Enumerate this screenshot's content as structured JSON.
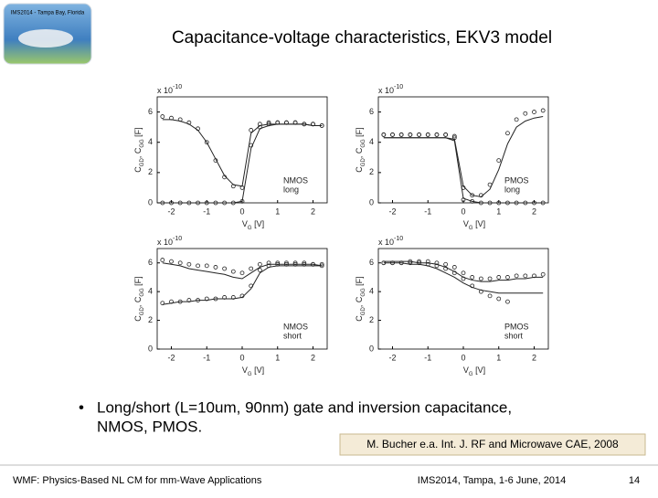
{
  "header": {
    "title": "Capacitance-voltage characteristics, EKV3 model",
    "logo_text": "IMS2014 - Tampa Bay, Florida"
  },
  "chart_data": [
    {
      "type": "line",
      "x": [
        -2.25,
        -2,
        -1.75,
        -1.5,
        -1.25,
        -1,
        -0.75,
        -0.5,
        -0.25,
        0,
        0.25,
        0.5,
        0.75,
        1,
        1.25,
        1.5,
        1.75,
        2,
        2.25
      ],
      "xlim": [
        -2.4,
        2.4
      ],
      "xticks": [
        -2,
        -1,
        0,
        1,
        2
      ],
      "ylim": [
        0,
        7
      ],
      "yticks": [
        0,
        2,
        4,
        6
      ],
      "scale_label": "x 10",
      "scale_exponent": "-10",
      "xlabel": [
        "V",
        "G",
        " [V]"
      ],
      "ylabel": [
        "C",
        "GD",
        ", C",
        "GG",
        " [F]"
      ],
      "annotations": [
        "NMOS",
        "long"
      ],
      "series": [
        {
          "color": "#222",
          "marker": "circle",
          "values": [
            5.7,
            5.6,
            5.5,
            5.3,
            4.9,
            4.0,
            2.8,
            1.7,
            1.1,
            1.0,
            4.8,
            5.2,
            5.3,
            5.3,
            5.3,
            5.3,
            5.2,
            5.2,
            5.1
          ]
        },
        {
          "color": "#222",
          "marker": "circle",
          "values": [
            0,
            0,
            0,
            0,
            0,
            0,
            0,
            0,
            0,
            0.1,
            3.8,
            5.0,
            5.2,
            5.3,
            5.3,
            5.3,
            5.2,
            5.2,
            5.1
          ]
        },
        {
          "color": "#222",
          "marker": "line",
          "values": [
            5.5,
            5.5,
            5.4,
            5.2,
            4.8,
            4.0,
            2.9,
            1.8,
            1.2,
            1.1,
            4.6,
            5.1,
            5.2,
            5.2,
            5.2,
            5.2,
            5.2,
            5.1,
            5.1
          ]
        },
        {
          "color": "#222",
          "marker": "line",
          "values": [
            0,
            0,
            0,
            0,
            0,
            0,
            0,
            0,
            0,
            0.1,
            3.6,
            4.9,
            5.1,
            5.2,
            5.2,
            5.2,
            5.2,
            5.1,
            5.1
          ]
        }
      ]
    },
    {
      "type": "line",
      "x": [
        -2.25,
        -2,
        -1.75,
        -1.5,
        -1.25,
        -1,
        -0.75,
        -0.5,
        -0.25,
        0,
        0.25,
        0.5,
        0.75,
        1,
        1.25,
        1.5,
        1.75,
        2,
        2.25
      ],
      "xlim": [
        -2.4,
        2.4
      ],
      "xticks": [
        -2,
        -1,
        0,
        1,
        2
      ],
      "ylim": [
        0,
        7
      ],
      "yticks": [
        0,
        2,
        4,
        6
      ],
      "scale_label": "x 10",
      "scale_exponent": "-10",
      "xlabel": [
        "V",
        "G",
        " [V]"
      ],
      "ylabel": [
        "C",
        "GD",
        ", C",
        "GG",
        " [F]"
      ],
      "annotations": [
        "PMOS",
        "long"
      ],
      "series": [
        {
          "color": "#222",
          "marker": "circle",
          "values": [
            4.5,
            4.5,
            4.5,
            4.5,
            4.5,
            4.5,
            4.5,
            4.5,
            4.4,
            1.0,
            0.5,
            0.5,
            1.2,
            2.8,
            4.6,
            5.5,
            5.9,
            6.0,
            6.1
          ]
        },
        {
          "color": "#222",
          "marker": "circle",
          "values": [
            4.5,
            4.5,
            4.5,
            4.5,
            4.5,
            4.5,
            4.5,
            4.5,
            4.3,
            0.2,
            0.1,
            0,
            0,
            0,
            0,
            0,
            0,
            0,
            0
          ]
        },
        {
          "color": "#222",
          "marker": "line",
          "values": [
            4.3,
            4.3,
            4.3,
            4.3,
            4.3,
            4.3,
            4.3,
            4.3,
            4.2,
            1.1,
            0.5,
            0.4,
            0.9,
            2.2,
            3.9,
            5.0,
            5.4,
            5.6,
            5.7
          ]
        },
        {
          "color": "#222",
          "marker": "line",
          "values": [
            4.3,
            4.3,
            4.3,
            4.3,
            4.3,
            4.3,
            4.3,
            4.3,
            4.1,
            0.3,
            0.1,
            0,
            0,
            0,
            0,
            0,
            0,
            0,
            0
          ]
        }
      ]
    },
    {
      "type": "line",
      "x": [
        -2.25,
        -2,
        -1.75,
        -1.5,
        -1.25,
        -1,
        -0.75,
        -0.5,
        -0.25,
        0,
        0.25,
        0.5,
        0.75,
        1,
        1.25,
        1.5,
        1.75,
        2,
        2.25
      ],
      "xlim": [
        -2.4,
        2.4
      ],
      "xticks": [
        -2,
        -1,
        0,
        1,
        2
      ],
      "ylim": [
        0,
        7
      ],
      "yticks": [
        0,
        2,
        4,
        6
      ],
      "scale_label": "x 10",
      "scale_exponent": "-10",
      "xlabel": [
        "V",
        "G",
        " [V]"
      ],
      "ylabel": [
        "C",
        "GD",
        ", C",
        "GG",
        " [F]"
      ],
      "annotations": [
        "NMOS",
        "short"
      ],
      "series": [
        {
          "color": "#222",
          "marker": "circle",
          "values": [
            6.2,
            6.1,
            6.0,
            5.9,
            5.8,
            5.8,
            5.7,
            5.6,
            5.4,
            5.3,
            5.6,
            5.9,
            6.0,
            6.0,
            6.0,
            6.0,
            6.0,
            5.9,
            5.9
          ]
        },
        {
          "color": "#222",
          "marker": "circle",
          "values": [
            3.2,
            3.3,
            3.3,
            3.4,
            3.4,
            3.5,
            3.5,
            3.6,
            3.6,
            3.7,
            4.4,
            5.5,
            5.8,
            5.9,
            5.9,
            5.9,
            5.9,
            5.9,
            5.8
          ]
        },
        {
          "color": "#222",
          "marker": "line",
          "values": [
            6.0,
            5.9,
            5.8,
            5.6,
            5.5,
            5.4,
            5.3,
            5.2,
            5.0,
            4.9,
            5.3,
            5.7,
            5.9,
            5.9,
            5.9,
            5.9,
            5.9,
            5.9,
            5.8
          ]
        },
        {
          "color": "#222",
          "marker": "line",
          "values": [
            3.1,
            3.2,
            3.3,
            3.3,
            3.4,
            3.4,
            3.5,
            3.5,
            3.5,
            3.6,
            4.2,
            5.3,
            5.7,
            5.8,
            5.8,
            5.8,
            5.8,
            5.8,
            5.8
          ]
        }
      ]
    },
    {
      "type": "line",
      "x": [
        -2.25,
        -2,
        -1.75,
        -1.5,
        -1.25,
        -1,
        -0.75,
        -0.5,
        -0.25,
        0,
        0.25,
        0.5,
        0.75,
        1,
        1.25,
        1.5,
        1.75,
        2,
        2.25
      ],
      "xlim": [
        -2.4,
        2.4
      ],
      "xticks": [
        -2,
        -1,
        0,
        1,
        2
      ],
      "ylim": [
        0,
        7
      ],
      "yticks": [
        0,
        2,
        4,
        6
      ],
      "scale_label": "x 10",
      "scale_exponent": "-10",
      "xlabel": [
        "V",
        "G",
        " [V]"
      ],
      "ylabel": [
        "C",
        "GD",
        ", C",
        "GG",
        " [F]"
      ],
      "annotations": [
        "PMOS",
        "short"
      ],
      "series": [
        {
          "color": "#222",
          "marker": "circle",
          "values": [
            6.0,
            6.0,
            6.0,
            6.1,
            6.1,
            6.1,
            6.0,
            5.9,
            5.7,
            5.3,
            5.0,
            4.9,
            4.9,
            5.0,
            5.0,
            5.1,
            5.1,
            5.1,
            5.2
          ]
        },
        {
          "color": "#222",
          "marker": "circle",
          "values": [
            6.0,
            6.0,
            6.0,
            6.0,
            6.0,
            5.9,
            5.8,
            5.6,
            5.3,
            4.9,
            4.4,
            4.0,
            3.7,
            3.5,
            3.3,
            null,
            null,
            null,
            null
          ]
        },
        {
          "color": "#222",
          "marker": "line",
          "values": [
            6.1,
            6.1,
            6.1,
            6.1,
            6.0,
            6.0,
            5.9,
            5.7,
            5.4,
            5.0,
            4.8,
            4.7,
            4.7,
            4.8,
            4.8,
            4.9,
            4.9,
            5.0,
            5.0
          ]
        },
        {
          "color": "#222",
          "marker": "line",
          "values": [
            6.0,
            6.0,
            6.0,
            5.9,
            5.9,
            5.8,
            5.6,
            5.3,
            5.0,
            4.6,
            4.3,
            4.1,
            4.0,
            3.9,
            3.9,
            3.9,
            3.9,
            3.9,
            3.9
          ]
        }
      ]
    }
  ],
  "bullet": [
    "Long/short (L=10um, 90nm) gate and inversion capacitance,",
    "NMOS, PMOS."
  ],
  "citation": "M. Bucher e.a. Int. J. RF and Microwave CAE, 2008",
  "footer": {
    "left": "WMF: Physics-Based NL CM for mm-Wave Applications",
    "center": "IMS2014, Tampa, 1-6 June, 2014",
    "page": "14"
  }
}
